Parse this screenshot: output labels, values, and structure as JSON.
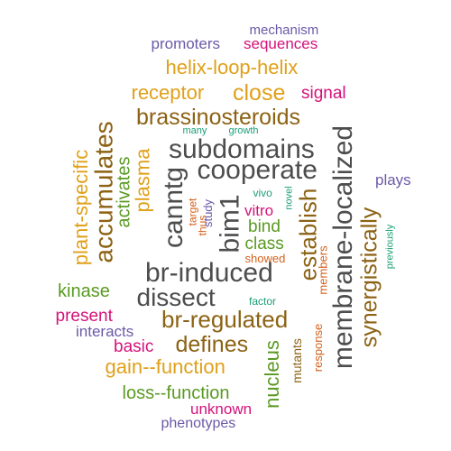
{
  "palette": {
    "gray": "#4d4d4d",
    "brown": "#8c6214",
    "gold": "#e0a01a",
    "green": "#5a9a22",
    "magenta": "#d4127a",
    "purple": "#6b5aa8",
    "orange": "#d4601a",
    "teal": "#1b9e77"
  },
  "words": [
    {
      "text": "mechanism",
      "color": "purple",
      "rotated": false
    },
    {
      "text": "promoters",
      "color": "purple",
      "rotated": false
    },
    {
      "text": "sequences",
      "color": "magenta",
      "rotated": false
    },
    {
      "text": "helix-loop-helix",
      "color": "gold",
      "rotated": false
    },
    {
      "text": "receptor",
      "color": "gold",
      "rotated": false
    },
    {
      "text": "close",
      "color": "gold",
      "rotated": false
    },
    {
      "text": "signal",
      "color": "magenta",
      "rotated": false
    },
    {
      "text": "brassinosteroids",
      "color": "brown",
      "rotated": false
    },
    {
      "text": "many",
      "color": "teal",
      "rotated": false
    },
    {
      "text": "growth",
      "color": "teal",
      "rotated": false
    },
    {
      "text": "subdomains",
      "color": "gray",
      "rotated": false
    },
    {
      "text": "cooperate",
      "color": "gray",
      "rotated": false
    },
    {
      "text": "plays",
      "color": "purple",
      "rotated": false
    },
    {
      "text": "vivo",
      "color": "teal",
      "rotated": false
    },
    {
      "text": "novel",
      "color": "teal",
      "rotated": true
    },
    {
      "text": "vitro",
      "color": "magenta",
      "rotated": false
    },
    {
      "text": "bind",
      "color": "green",
      "rotated": false
    },
    {
      "text": "class",
      "color": "green",
      "rotated": false
    },
    {
      "text": "showed",
      "color": "orange",
      "rotated": false
    },
    {
      "text": "br-induced",
      "color": "gray",
      "rotated": false
    },
    {
      "text": "dissect",
      "color": "gray",
      "rotated": false
    },
    {
      "text": "kinase",
      "color": "green",
      "rotated": false
    },
    {
      "text": "factor",
      "color": "teal",
      "rotated": false
    },
    {
      "text": "br-regulated",
      "color": "brown",
      "rotated": false
    },
    {
      "text": "present",
      "color": "magenta",
      "rotated": false
    },
    {
      "text": "interacts",
      "color": "purple",
      "rotated": false
    },
    {
      "text": "basic",
      "color": "magenta",
      "rotated": false
    },
    {
      "text": "defines",
      "color": "brown",
      "rotated": false
    },
    {
      "text": "gain--function",
      "color": "gold",
      "rotated": false
    },
    {
      "text": "loss--function",
      "color": "green",
      "rotated": false
    },
    {
      "text": "unknown",
      "color": "magenta",
      "rotated": false
    },
    {
      "text": "phenotypes",
      "color": "purple",
      "rotated": false
    },
    {
      "text": "plant-specific",
      "color": "gold",
      "rotated": true
    },
    {
      "text": "accumulates",
      "color": "brown",
      "rotated": true
    },
    {
      "text": "activates",
      "color": "green",
      "rotated": true
    },
    {
      "text": "plasma",
      "color": "gold",
      "rotated": true
    },
    {
      "text": "canntg",
      "color": "gray",
      "rotated": true
    },
    {
      "text": "target",
      "color": "orange",
      "rotated": true
    },
    {
      "text": "thus",
      "color": "orange",
      "rotated": true
    },
    {
      "text": "study",
      "color": "purple",
      "rotated": true
    },
    {
      "text": "bim1",
      "color": "gray",
      "rotated": true
    },
    {
      "text": "establish",
      "color": "brown",
      "rotated": true
    },
    {
      "text": "members",
      "color": "orange",
      "rotated": true
    },
    {
      "text": "membrane-localized",
      "color": "gray",
      "rotated": true
    },
    {
      "text": "synergistically",
      "color": "brown",
      "rotated": true
    },
    {
      "text": "previously",
      "color": "teal",
      "rotated": true
    },
    {
      "text": "nucleus",
      "color": "green",
      "rotated": true
    },
    {
      "text": "mutants",
      "color": "brown",
      "rotated": true
    },
    {
      "text": "response",
      "color": "orange",
      "rotated": true
    }
  ]
}
